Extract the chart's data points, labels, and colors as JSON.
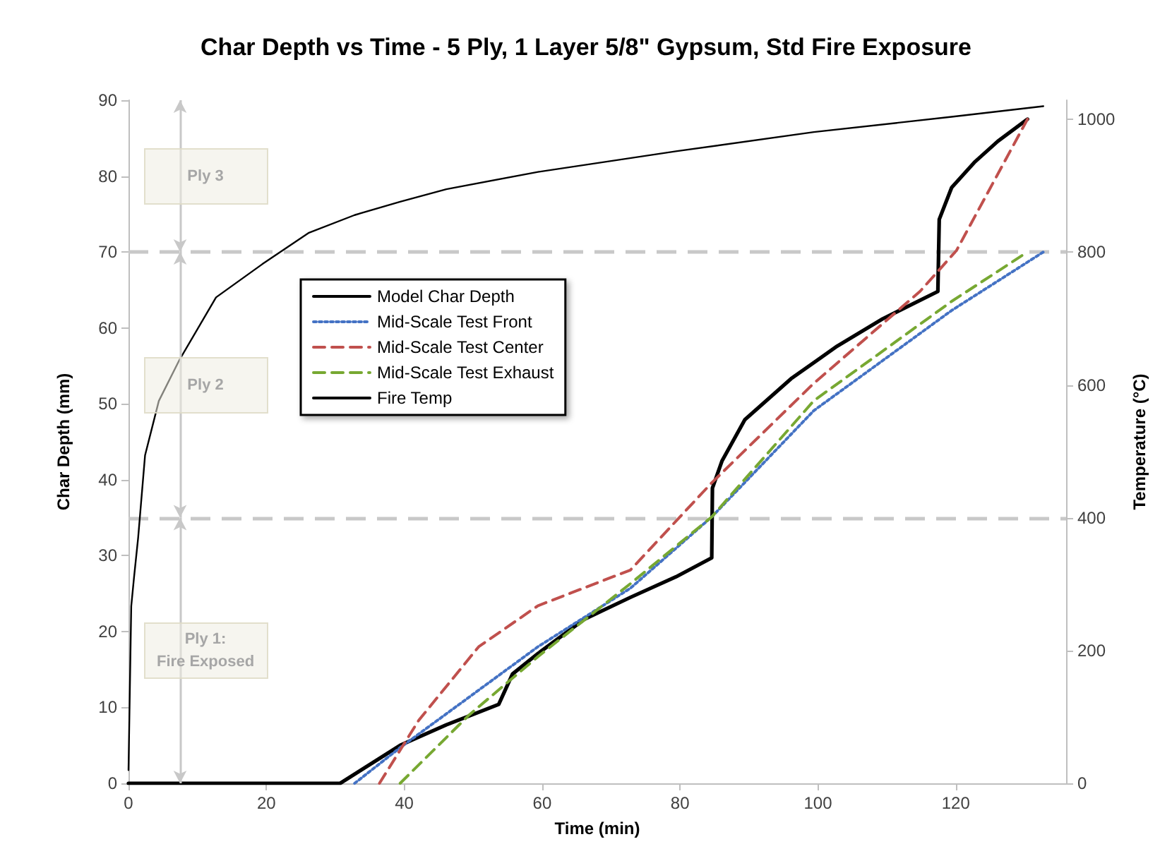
{
  "chart_data": {
    "type": "line",
    "title": "Char Depth vs Time - 5 Ply, 1 Layer 5/8\" Gypsum, Std Fire Exposure",
    "xlabel": "Time (min)",
    "ylabel": "Char Depth (mm)",
    "y2label": "Temperature (°C)",
    "xlim": [
      0,
      136
    ],
    "xticks": [
      0,
      20,
      40,
      60,
      80,
      100,
      120
    ],
    "ylim": [
      0,
      90
    ],
    "yticks": [
      0,
      10,
      20,
      30,
      40,
      50,
      60,
      70,
      80,
      90
    ],
    "y2lim": [
      0,
      1029
    ],
    "y2ticks": [
      0,
      200,
      400,
      600,
      800,
      1000
    ],
    "grid": false,
    "legend": "left",
    "line_style": "solid",
    "marker": "none",
    "ref_lines": [
      {
        "axis": "y",
        "value": 35,
        "color": "#c8c8c8",
        "line_style": "dashed"
      },
      {
        "axis": "y",
        "value": 70,
        "color": "#c8c8c8",
        "line_style": "dashed"
      }
    ],
    "annotations": [
      "Ply 3",
      "Ply 2",
      "Ply 1:\nFire Exposed"
    ],
    "series": [
      {
        "name": "Model Char Depth",
        "color": "#000000",
        "x": [
          0,
          30.7,
          39.4,
          46.1,
          53.7,
          55.7,
          59.4,
          66.1,
          72.8,
          79.4,
          84.6,
          84.7,
          86.1,
          89.4,
          96.1,
          102.8,
          109.4,
          117.4,
          117.6,
          119.4,
          122.8,
          126.1,
          130.4
        ],
        "values": [
          0,
          0,
          5.0,
          7.7,
          10.4,
          14.4,
          17.1,
          21.6,
          24.5,
          27.2,
          29.7,
          38.9,
          42.5,
          47.9,
          53.3,
          57.6,
          61.2,
          64.8,
          74.3,
          78.5,
          81.9,
          84.6,
          87.5
        ]
      },
      {
        "name": "Mid-Scale Test Front",
        "color": "#4472c4",
        "line_style": "dotted",
        "x": [
          32.8,
          39.4,
          59.4,
          72.8,
          84.6,
          99.4,
          119.4,
          132.7
        ],
        "values": [
          0,
          4.7,
          18.0,
          25.7,
          35.1,
          49.1,
          62.3,
          70
        ]
      },
      {
        "name": "Mid-Scale Test Center",
        "color": "#c0504d",
        "line_style": "dashed",
        "x": [
          36.4,
          42.1,
          50.8,
          59.4,
          72.8,
          84.6,
          99.4,
          114.8,
          120.1,
          130.4
        ],
        "values": [
          0,
          8.3,
          18.0,
          23.4,
          28.1,
          39.6,
          52.7,
          64.8,
          70.2,
          87.5
        ]
      },
      {
        "name": "Mid-Scale Test Exhaust",
        "color": "#77a832",
        "line_style": "dashed",
        "x": [
          39.4,
          49.4,
          59.4,
          72.8,
          84.6,
          99.4,
          119.4,
          130.4
        ],
        "values": [
          0,
          9.0,
          16.7,
          26.3,
          35.1,
          50.4,
          63.5,
          70
        ]
      },
      {
        "name": "Fire Temp",
        "color": "#000000",
        "axis": "y2",
        "x": [
          0,
          0.4,
          0.8,
          1.4,
          2.4,
          4.4,
          7.4,
          12.7,
          19.4,
          26.1,
          32.8,
          39.4,
          46.1,
          59.4,
          79.4,
          99.4,
          119.4,
          132.7
        ],
        "values": [
          20,
          267,
          310,
          370,
          494,
          576,
          638,
          732,
          782,
          829,
          856,
          876,
          895,
          921,
          952,
          981,
          1004,
          1020
        ]
      }
    ]
  }
}
